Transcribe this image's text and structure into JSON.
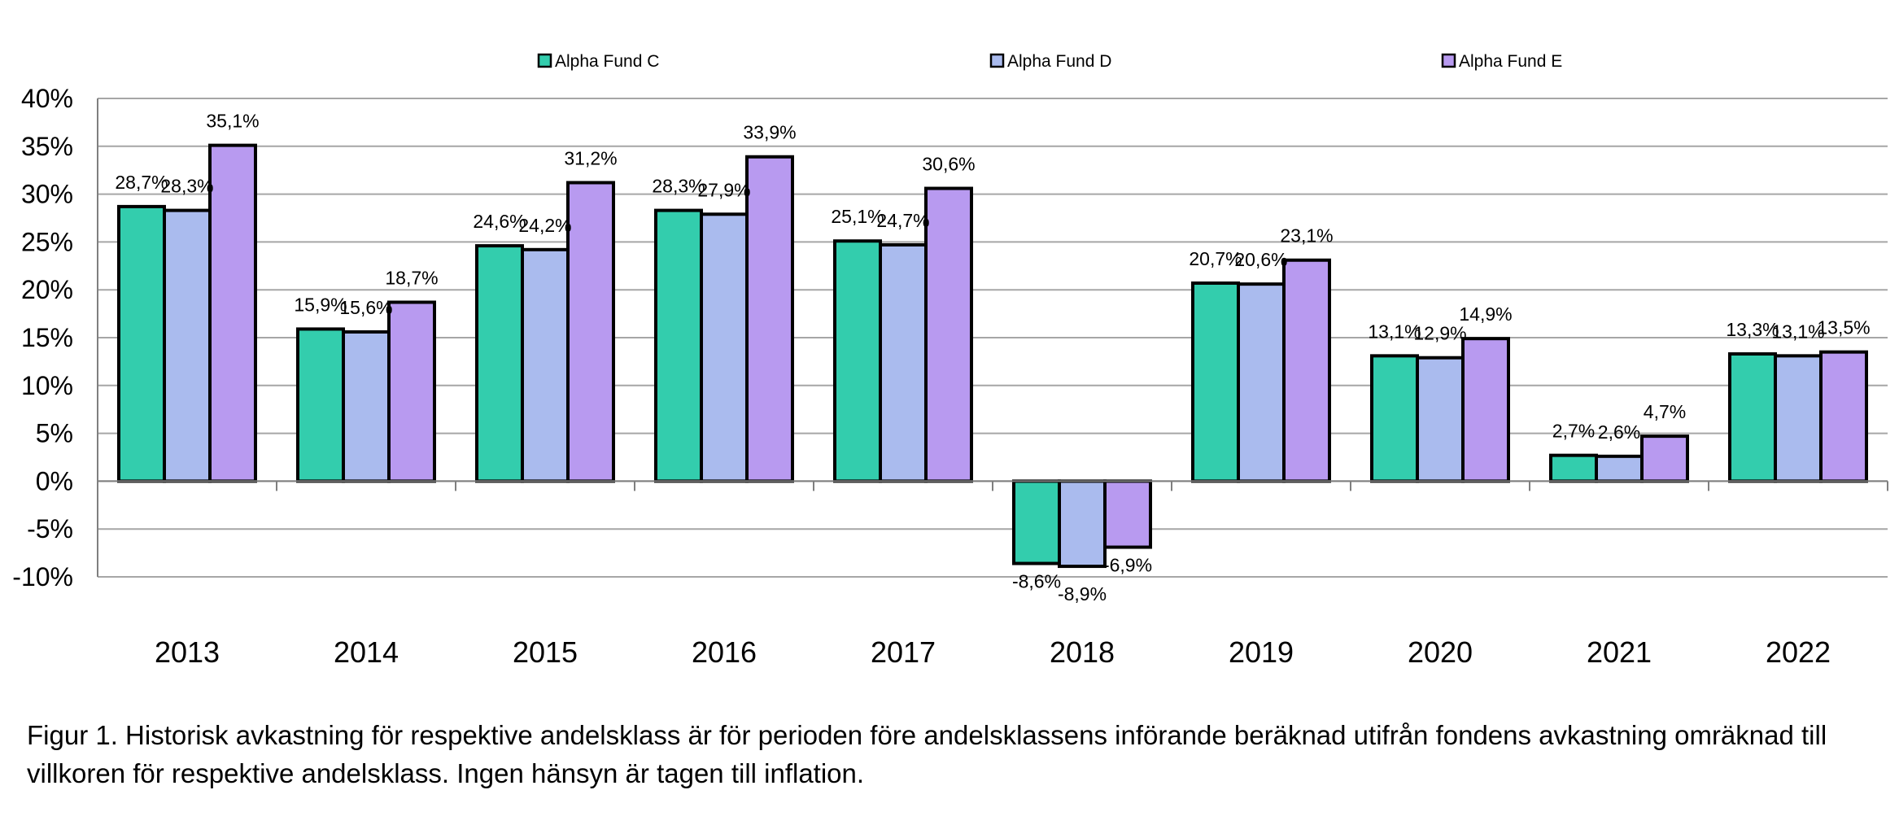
{
  "chart_data": {
    "type": "bar",
    "categories": [
      "2013",
      "2014",
      "2015",
      "2016",
      "2017",
      "2018",
      "2019",
      "2020",
      "2021",
      "2022"
    ],
    "series": [
      {
        "name": "Alpha Fund C",
        "color": "#33cdad",
        "values": [
          28.7,
          15.9,
          24.6,
          28.3,
          25.1,
          -8.6,
          20.7,
          13.1,
          2.7,
          13.3
        ],
        "labels": [
          "28,7%",
          "15,9%",
          "24,6%",
          "28,3%",
          "25,1%",
          "-8,6%",
          "20,7%",
          "13,1%",
          "2,7%",
          "13,3%"
        ]
      },
      {
        "name": "Alpha Fund D",
        "color": "#aabbee",
        "values": [
          28.3,
          15.6,
          24.2,
          27.9,
          24.7,
          -8.9,
          20.6,
          12.9,
          2.6,
          13.1
        ],
        "labels": [
          "28,3%",
          "15,6%",
          "24,2%",
          "27,9%",
          "24,7%",
          "-8,9%",
          "20,6%",
          "12,9%",
          "2,6%",
          "13,1%"
        ]
      },
      {
        "name": "Alpha Fund E",
        "color": "#b89af0",
        "values": [
          35.1,
          18.7,
          31.2,
          33.9,
          30.6,
          -6.9,
          23.1,
          14.9,
          4.7,
          13.5
        ],
        "labels": [
          "35,1%",
          "18,7%",
          "31,2%",
          "33,9%",
          "30,6%",
          "-6,9%",
          "23,1%",
          "14,9%",
          "4,7%",
          "13,5%"
        ]
      }
    ],
    "ylim": [
      -10,
      40
    ],
    "yticks": [
      -10,
      -5,
      0,
      5,
      10,
      15,
      20,
      25,
      30,
      35,
      40
    ],
    "ytick_labels": [
      "-10%",
      "-5%",
      "0%",
      "5%",
      "10%",
      "15%",
      "20%",
      "25%",
      "30%",
      "35%",
      "40%"
    ],
    "grid": true,
    "legend": "top"
  },
  "caption": {
    "line1": "Figur 1. Historisk avkastning för respektive andelsklass är för perioden före andelsklassens införande beräknad utifrån fondens avkastning omräknad till",
    "line2": "villkoren för respektive andelsklass. Ingen hänsyn är tagen till inflation."
  }
}
